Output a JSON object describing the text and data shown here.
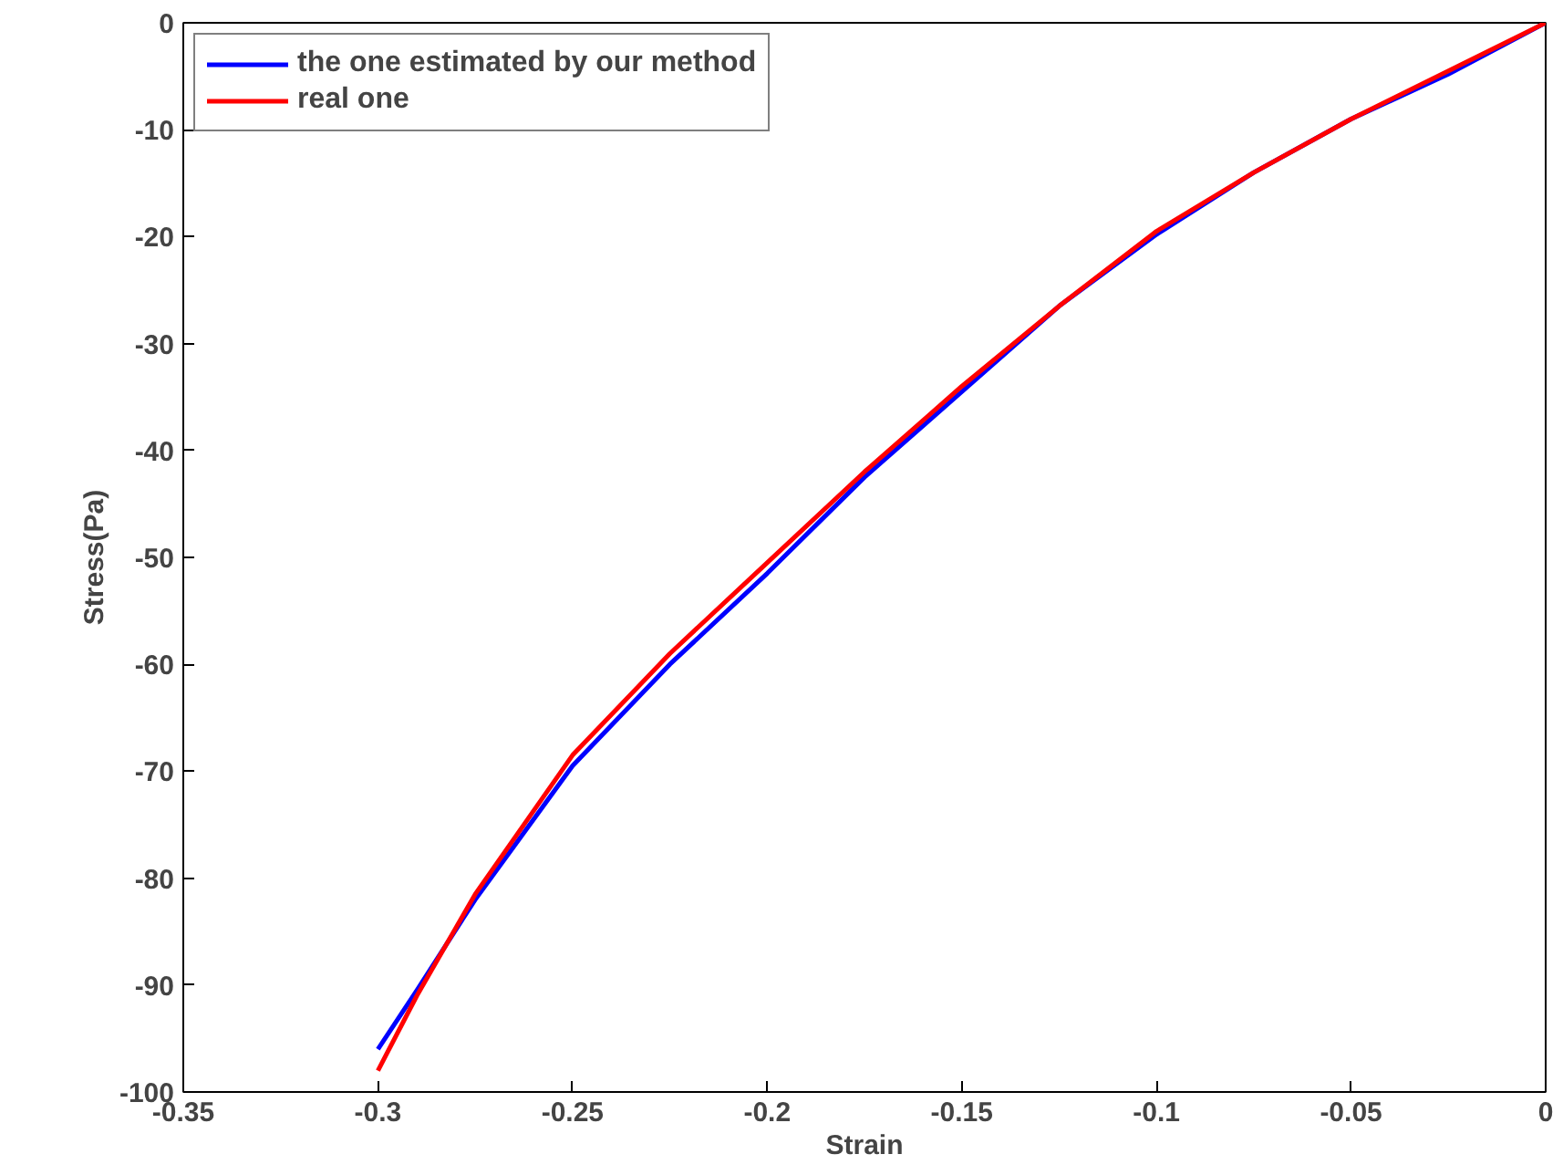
{
  "chart_data": {
    "type": "line",
    "xlabel": "Strain",
    "ylabel": "Stress(Pa)",
    "xlim": [
      -0.35,
      0
    ],
    "ylim": [
      -100,
      0
    ],
    "xticks": [
      -0.35,
      -0.3,
      -0.25,
      -0.2,
      -0.15,
      -0.1,
      -0.05,
      0
    ],
    "yticks": [
      -100,
      -90,
      -80,
      -70,
      -60,
      -50,
      -40,
      -30,
      -20,
      -10,
      0
    ],
    "grid": false,
    "legend": "top left",
    "x": [
      -0.3,
      -0.29,
      -0.275,
      -0.25,
      -0.225,
      -0.2,
      -0.175,
      -0.15,
      -0.125,
      -0.1,
      -0.075,
      -0.05,
      -0.025,
      0
    ],
    "series": [
      {
        "name": "the one estimated by our method",
        "color": "#0000ff",
        "values": [
          -96,
          -90.5,
          -82,
          -69.5,
          -60,
          -51.5,
          -42.5,
          -34.5,
          -26.5,
          -19.8,
          -14,
          -9,
          -4.8,
          0
        ]
      },
      {
        "name": "real one",
        "color": "#ff0000",
        "values": [
          -98,
          -91,
          -81.5,
          -68.5,
          -59,
          -50.5,
          -42,
          -34,
          -26.5,
          -19.5,
          -14,
          -9,
          -4.5,
          0
        ]
      }
    ]
  }
}
